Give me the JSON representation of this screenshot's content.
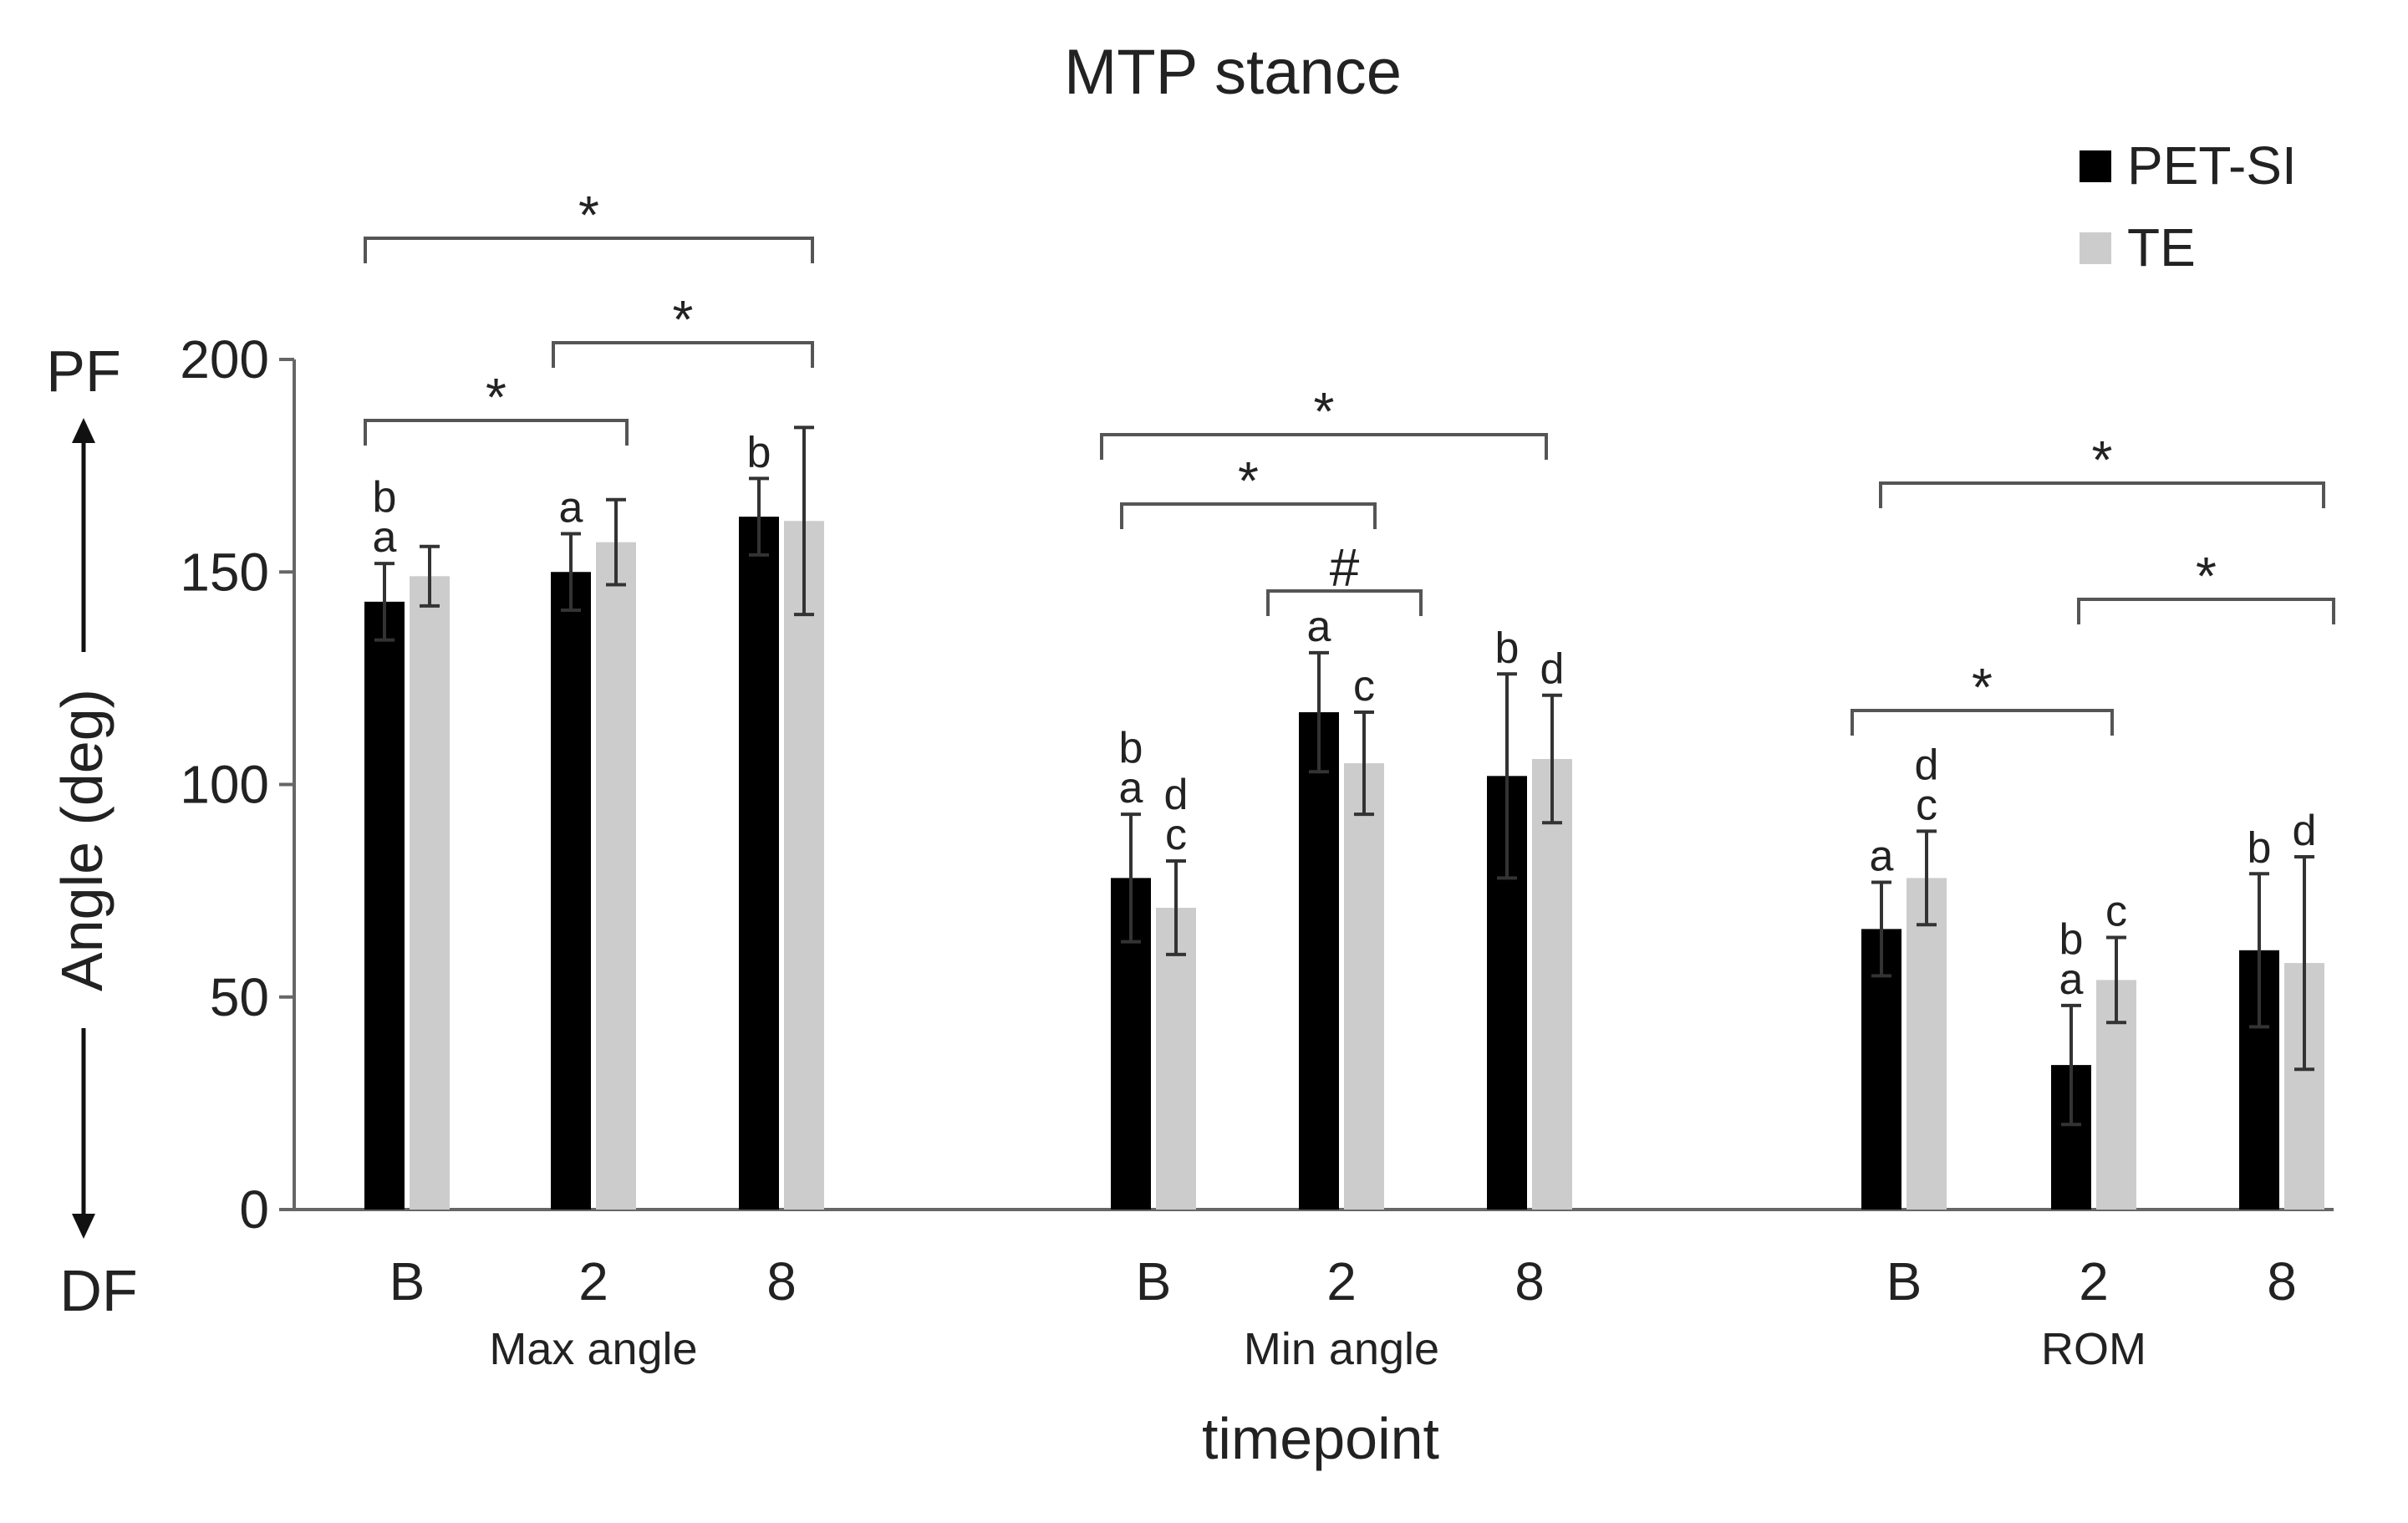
{
  "chart_data": {
    "type": "bar",
    "title": "MTP stance",
    "xlabel": "timepoint",
    "ylabel": "Angle (deg)",
    "y_direction_labels": {
      "top": "PF",
      "bottom": "DF"
    },
    "ylim": [
      0,
      200
    ],
    "yticks": [
      "0",
      "50",
      "100",
      "150",
      "200"
    ],
    "legend": {
      "position": "top-right",
      "entries": [
        "PET-SI",
        "TE"
      ]
    },
    "colors": {
      "PET-SI": "#000000",
      "TE": "#cccccc",
      "axis": "#666666",
      "text": "#222222"
    },
    "groups": [
      {
        "label": "Max angle",
        "categories": [
          "B",
          "2",
          "8"
        ]
      },
      {
        "label": "Min angle",
        "categories": [
          "B",
          "2",
          "8"
        ]
      },
      {
        "label": "ROM",
        "categories": [
          "B",
          "2",
          "8"
        ]
      }
    ],
    "series": [
      {
        "name": "PET-SI",
        "values": [
          143,
          150,
          163,
          78,
          117,
          102,
          66,
          34,
          61
        ],
        "errors": [
          9,
          9,
          9,
          15,
          14,
          24,
          11,
          14,
          18
        ]
      },
      {
        "name": "TE",
        "values": [
          149,
          157,
          162,
          71,
          105,
          106,
          78,
          54,
          58
        ],
        "errors": [
          7,
          10,
          22,
          11,
          12,
          15,
          11,
          10,
          25
        ]
      }
    ],
    "letters": [
      {
        "series": "PET-SI",
        "index": 0,
        "text": "a"
      },
      {
        "series": "PET-SI",
        "index": 0,
        "text": "b"
      },
      {
        "series": "PET-SI",
        "index": 1,
        "text": "a"
      },
      {
        "series": "PET-SI",
        "index": 2,
        "text": "b"
      },
      {
        "series": "PET-SI",
        "index": 3,
        "text": "a"
      },
      {
        "series": "PET-SI",
        "index": 3,
        "text": "b"
      },
      {
        "series": "TE",
        "index": 3,
        "text": "c"
      },
      {
        "series": "TE",
        "index": 3,
        "text": "d"
      },
      {
        "series": "PET-SI",
        "index": 4,
        "text": "a"
      },
      {
        "series": "TE",
        "index": 4,
        "text": "c"
      },
      {
        "series": "PET-SI",
        "index": 5,
        "text": "b"
      },
      {
        "series": "TE",
        "index": 5,
        "text": "d"
      },
      {
        "series": "PET-SI",
        "index": 6,
        "text": "a"
      },
      {
        "series": "TE",
        "index": 6,
        "text": "c"
      },
      {
        "series": "TE",
        "index": 6,
        "text": "d"
      },
      {
        "series": "PET-SI",
        "index": 7,
        "text": "a"
      },
      {
        "series": "PET-SI",
        "index": 7,
        "text": "b"
      },
      {
        "series": "TE",
        "index": 7,
        "text": "c"
      },
      {
        "series": "PET-SI",
        "index": 8,
        "text": "b"
      },
      {
        "series": "TE",
        "index": 8,
        "text": "d"
      }
    ],
    "significance": [
      {
        "from": 0,
        "to": 2,
        "symbol": "*"
      },
      {
        "from": 1,
        "to": 2,
        "symbol": "*"
      },
      {
        "from": 0,
        "to": 1,
        "symbol": "*"
      },
      {
        "from": 3,
        "to": 5,
        "symbol": "*"
      },
      {
        "from": 3,
        "to": 4,
        "symbol": "*"
      },
      {
        "from": 4,
        "to": 4,
        "symbol": "#"
      },
      {
        "from": 6,
        "to": 8,
        "symbol": "*"
      },
      {
        "from": 7,
        "to": 8,
        "symbol": "*"
      },
      {
        "from": 6,
        "to": 7,
        "symbol": "*"
      }
    ]
  }
}
